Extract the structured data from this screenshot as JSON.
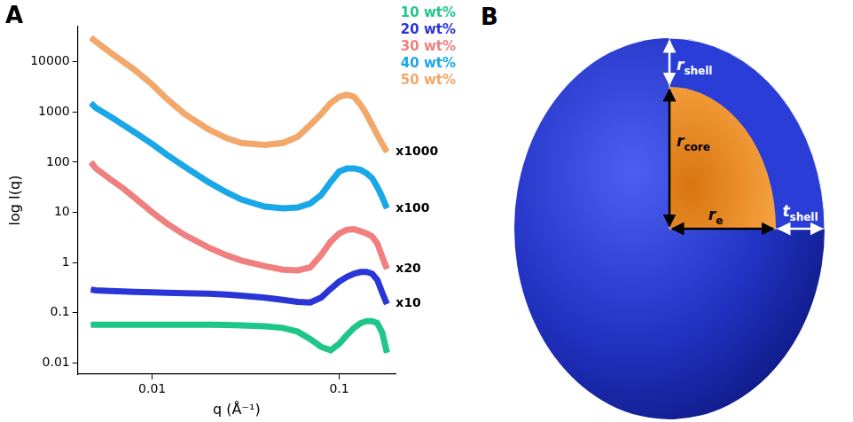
{
  "panel_labels": [
    "A",
    "B"
  ],
  "chart_data": {
    "type": "line",
    "log": true,
    "grid": false,
    "legend": "top-right",
    "x_label": "q (Å⁻¹)",
    "y_label": "log I(q)",
    "x": [
      0.0047,
      0.005,
      0.006,
      0.007,
      0.008,
      0.01,
      0.012,
      0.015,
      0.02,
      0.025,
      0.03,
      0.04,
      0.05,
      0.06,
      0.07,
      0.08,
      0.09,
      0.1,
      0.11,
      0.12,
      0.13,
      0.14,
      0.15,
      0.16,
      0.17,
      0.18
    ],
    "xlim": [
      0.004,
      0.2
    ],
    "xticks": [
      0.01,
      0.1
    ],
    "ylim": [
      0.006,
      50000
    ],
    "yticks": [
      0.01,
      0.1,
      1,
      10,
      100,
      1000,
      10000
    ],
    "series": [
      {
        "name": "10 wt%",
        "color": "#1fc68a",
        "values": [
          0.058,
          0.058,
          0.058,
          0.058,
          0.058,
          0.058,
          0.058,
          0.058,
          0.058,
          0.057,
          0.056,
          0.054,
          0.05,
          0.042,
          0.03,
          0.021,
          0.018,
          0.024,
          0.036,
          0.05,
          0.062,
          0.068,
          0.068,
          0.062,
          0.04,
          0.016
        ]
      },
      {
        "name": "20 wt%",
        "color": "#2a35d8",
        "values": [
          0.29,
          0.28,
          0.27,
          0.265,
          0.26,
          0.255,
          0.25,
          0.245,
          0.24,
          0.23,
          0.22,
          0.2,
          0.18,
          0.165,
          0.16,
          0.2,
          0.3,
          0.42,
          0.52,
          0.6,
          0.65,
          0.65,
          0.6,
          0.45,
          0.25,
          0.15
        ]
      },
      {
        "name": "30 wt%",
        "color": "#f07f7f",
        "values": [
          100,
          75,
          45,
          30,
          20,
          10,
          6,
          3.5,
          2,
          1.4,
          1.1,
          0.85,
          0.72,
          0.7,
          0.8,
          1.4,
          2.6,
          3.8,
          4.5,
          4.6,
          4.2,
          3.8,
          3.3,
          2.4,
          1.3,
          0.75
        ]
      },
      {
        "name": "40 wt%",
        "color": "#1aa7e8",
        "values": [
          1500,
          1200,
          800,
          550,
          400,
          230,
          140,
          80,
          40,
          25,
          18,
          13,
          12,
          12.5,
          15,
          22,
          40,
          65,
          75,
          75,
          70,
          60,
          48,
          32,
          20,
          12
        ]
      },
      {
        "name": "50 wt%",
        "color": "#f2a86a",
        "values": [
          30000,
          25000,
          15000,
          10000,
          7000,
          3500,
          1800,
          900,
          450,
          300,
          240,
          220,
          240,
          320,
          550,
          900,
          1500,
          2000,
          2200,
          2000,
          1400,
          900,
          550,
          350,
          230,
          160
        ]
      }
    ],
    "annotations": [
      {
        "text": "x1000",
        "series": "50 wt%"
      },
      {
        "text": "x100",
        "series": "40 wt%"
      },
      {
        "text": "x20",
        "series": "30 wt%"
      },
      {
        "text": "x10",
        "series": "20 wt%"
      }
    ]
  },
  "diagram": {
    "labels": [
      {
        "text": "r",
        "sub": "shell"
      },
      {
        "text": "r",
        "sub": "core"
      },
      {
        "text": "r",
        "sub": "e"
      },
      {
        "text": "t",
        "sub": "shell"
      }
    ]
  }
}
